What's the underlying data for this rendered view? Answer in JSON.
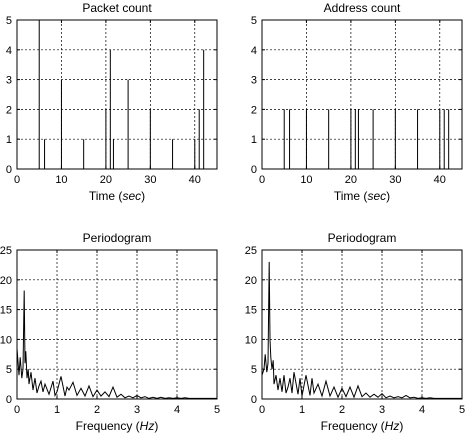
{
  "chart_data": [
    {
      "type": "line",
      "title": "Packet count",
      "xlabel": "Time (sec)",
      "ylabel": "",
      "xlim": [
        0,
        45
      ],
      "ylim": [
        0,
        5
      ],
      "xticks": [
        0,
        10,
        20,
        30,
        40
      ],
      "yticks": [
        0,
        1,
        2,
        3,
        4,
        5
      ],
      "xtick_labels": [
        "0",
        "10",
        "20",
        "30",
        "40"
      ],
      "ytick_labels": [
        "0",
        "1",
        "2",
        "3",
        "4",
        "5"
      ],
      "grid": true,
      "series": [
        {
          "x": [
            0,
            5.0,
            5.0,
            5.0,
            6.2,
            6.2,
            6.2,
            10.0,
            10.0,
            10.0,
            15.0,
            15.0,
            15.0,
            20.0,
            20.0,
            20.0,
            21.0,
            21.0,
            21.0,
            21.7,
            21.7,
            21.7,
            25.0,
            25.0,
            25.0,
            30.0,
            30.0,
            30.0,
            35.0,
            35.0,
            35.0,
            40.0,
            40.0,
            40.0,
            41.0,
            41.0,
            41.0,
            42.0,
            42.0,
            42.0,
            43.0
          ],
          "y": [
            0,
            0,
            5,
            0,
            0,
            1,
            0,
            0,
            3,
            0,
            0,
            1,
            0,
            0,
            2,
            0,
            0,
            4,
            0,
            0,
            1,
            0,
            0,
            3,
            0,
            0,
            2,
            0,
            0,
            1,
            0,
            0,
            1,
            0,
            0,
            2,
            0,
            0,
            4,
            0,
            0
          ]
        }
      ]
    },
    {
      "type": "line",
      "title": "Address count",
      "xlabel": "Time (sec)",
      "ylabel": "",
      "xlim": [
        0,
        45
      ],
      "ylim": [
        0,
        5
      ],
      "xticks": [
        0,
        10,
        20,
        30,
        40
      ],
      "yticks": [
        0,
        1,
        2,
        3,
        4,
        5
      ],
      "xtick_labels": [
        "0",
        "10",
        "20",
        "30",
        "40"
      ],
      "ytick_labels": [
        "0",
        "1",
        "2",
        "3",
        "4",
        "5"
      ],
      "grid": true,
      "series": [
        {
          "x": [
            0,
            5.0,
            5.0,
            5.0,
            6.2,
            6.2,
            6.2,
            10.0,
            10.0,
            10.0,
            15.0,
            15.0,
            15.0,
            20.0,
            20.0,
            20.0,
            21.0,
            21.0,
            21.0,
            21.7,
            21.7,
            21.7,
            25.0,
            25.0,
            25.0,
            30.0,
            30.0,
            30.0,
            35.0,
            35.0,
            35.0,
            40.0,
            40.0,
            40.0,
            41.0,
            41.0,
            41.0,
            42.0,
            42.0,
            42.0,
            43.0
          ],
          "y": [
            0,
            0,
            2,
            0,
            0,
            2,
            0,
            0,
            2,
            0,
            0,
            2,
            0,
            0,
            2,
            0,
            0,
            2,
            0,
            0,
            2,
            0,
            0,
            2,
            0,
            0,
            2,
            0,
            0,
            2,
            0,
            0,
            2,
            0,
            0,
            2,
            0,
            0,
            2,
            0,
            0
          ]
        }
      ]
    },
    {
      "type": "line",
      "title": "Periodogram",
      "xlabel": "Frequency (Hz)",
      "ylabel": "",
      "xlim": [
        0,
        5
      ],
      "ylim": [
        0,
        25
      ],
      "xticks": [
        0,
        1,
        2,
        3,
        4,
        5
      ],
      "yticks": [
        0,
        5,
        10,
        15,
        20,
        25
      ],
      "xtick_labels": [
        "0",
        "1",
        "2",
        "3",
        "4",
        "5"
      ],
      "ytick_labels": [
        "0",
        "5",
        "10",
        "15",
        "20",
        "25"
      ],
      "grid": true,
      "series": [
        {
          "x": [
            0,
            0.05,
            0.08,
            0.12,
            0.15,
            0.18,
            0.2,
            0.22,
            0.25,
            0.28,
            0.3,
            0.35,
            0.4,
            0.45,
            0.5,
            0.55,
            0.6,
            0.65,
            0.7,
            0.8,
            0.9,
            0.95,
            1.0,
            1.1,
            1.2,
            1.25,
            1.3,
            1.4,
            1.5,
            1.6,
            1.7,
            1.8,
            1.9,
            2.0,
            2.1,
            2.2,
            2.3,
            2.4,
            2.5,
            2.6,
            2.7,
            2.8,
            2.9,
            3.0,
            3.1,
            3.2,
            3.3,
            3.4,
            3.5,
            3.6,
            3.7,
            3.8,
            3.9,
            4.0,
            4.1,
            4.2,
            4.3,
            4.4,
            4.5,
            4.6,
            4.7,
            4.8,
            4.9,
            5.0
          ],
          "y": [
            8.5,
            4,
            7,
            3.5,
            5.0,
            18.2,
            6,
            8,
            3.5,
            5,
            2.5,
            4.5,
            1.5,
            3.5,
            1.0,
            2.2,
            3.0,
            1.2,
            2.5,
            0.8,
            3.0,
            0.6,
            1.2,
            3.8,
            0.5,
            2.0,
            1.5,
            2.8,
            0.6,
            1.8,
            0.5,
            2.2,
            0.4,
            1.5,
            0.5,
            1.2,
            0.4,
            2.0,
            0.3,
            0.8,
            0.2,
            0.5,
            0.2,
            0.6,
            0.2,
            0.4,
            0.1,
            0.3,
            0.1,
            0.3,
            0.1,
            0.2,
            0.1,
            0.2,
            0.1,
            0.2,
            0.1,
            0.1,
            0.1,
            0.1,
            0.1,
            0.1,
            0.1,
            0.1
          ]
        }
      ]
    },
    {
      "type": "line",
      "title": "Periodogram",
      "xlabel": "Frequency (Hz)",
      "ylabel": "",
      "xlim": [
        0,
        5
      ],
      "ylim": [
        0,
        25
      ],
      "xticks": [
        0,
        1,
        2,
        3,
        4,
        5
      ],
      "yticks": [
        0,
        5,
        10,
        15,
        20,
        25
      ],
      "xtick_labels": [
        "0",
        "1",
        "2",
        "3",
        "4",
        "5"
      ],
      "ytick_labels": [
        "0",
        "5",
        "10",
        "15",
        "20",
        "25"
      ],
      "grid": true,
      "series": [
        {
          "x": [
            0,
            0.05,
            0.08,
            0.12,
            0.15,
            0.18,
            0.2,
            0.22,
            0.25,
            0.28,
            0.3,
            0.35,
            0.4,
            0.45,
            0.5,
            0.55,
            0.6,
            0.65,
            0.7,
            0.75,
            0.8,
            0.9,
            0.95,
            1.0,
            1.1,
            1.2,
            1.25,
            1.3,
            1.4,
            1.5,
            1.6,
            1.7,
            1.8,
            1.9,
            2.0,
            2.1,
            2.2,
            2.3,
            2.4,
            2.5,
            2.6,
            2.7,
            2.8,
            2.9,
            3.0,
            3.1,
            3.2,
            3.3,
            3.4,
            3.5,
            3.6,
            3.7,
            3.8,
            3.9,
            4.0,
            4.1,
            4.2,
            4.3,
            4.4,
            4.5,
            4.6,
            4.7,
            4.8,
            4.9,
            5.0
          ],
          "y": [
            4,
            5,
            7.5,
            4.5,
            6,
            23.0,
            10,
            7,
            5,
            6.5,
            2.5,
            4,
            1.5,
            3.5,
            1.2,
            4.0,
            1.0,
            2.0,
            3.5,
            1.0,
            4.5,
            0.8,
            3.5,
            0.5,
            4.0,
            0.6,
            3.5,
            1.0,
            2.5,
            0.5,
            3.0,
            0.5,
            2.0,
            0.3,
            1.8,
            0.4,
            2.0,
            0.3,
            2.2,
            0.4,
            1.0,
            0.3,
            0.8,
            0.3,
            0.9,
            0.2,
            0.5,
            0.2,
            0.4,
            0.2,
            0.6,
            0.2,
            0.3,
            0.1,
            0.2,
            0.1,
            0.2,
            0.1,
            0.1,
            0.1,
            0.1,
            0.1,
            0.1,
            0.1,
            0.1
          ]
        }
      ]
    }
  ]
}
